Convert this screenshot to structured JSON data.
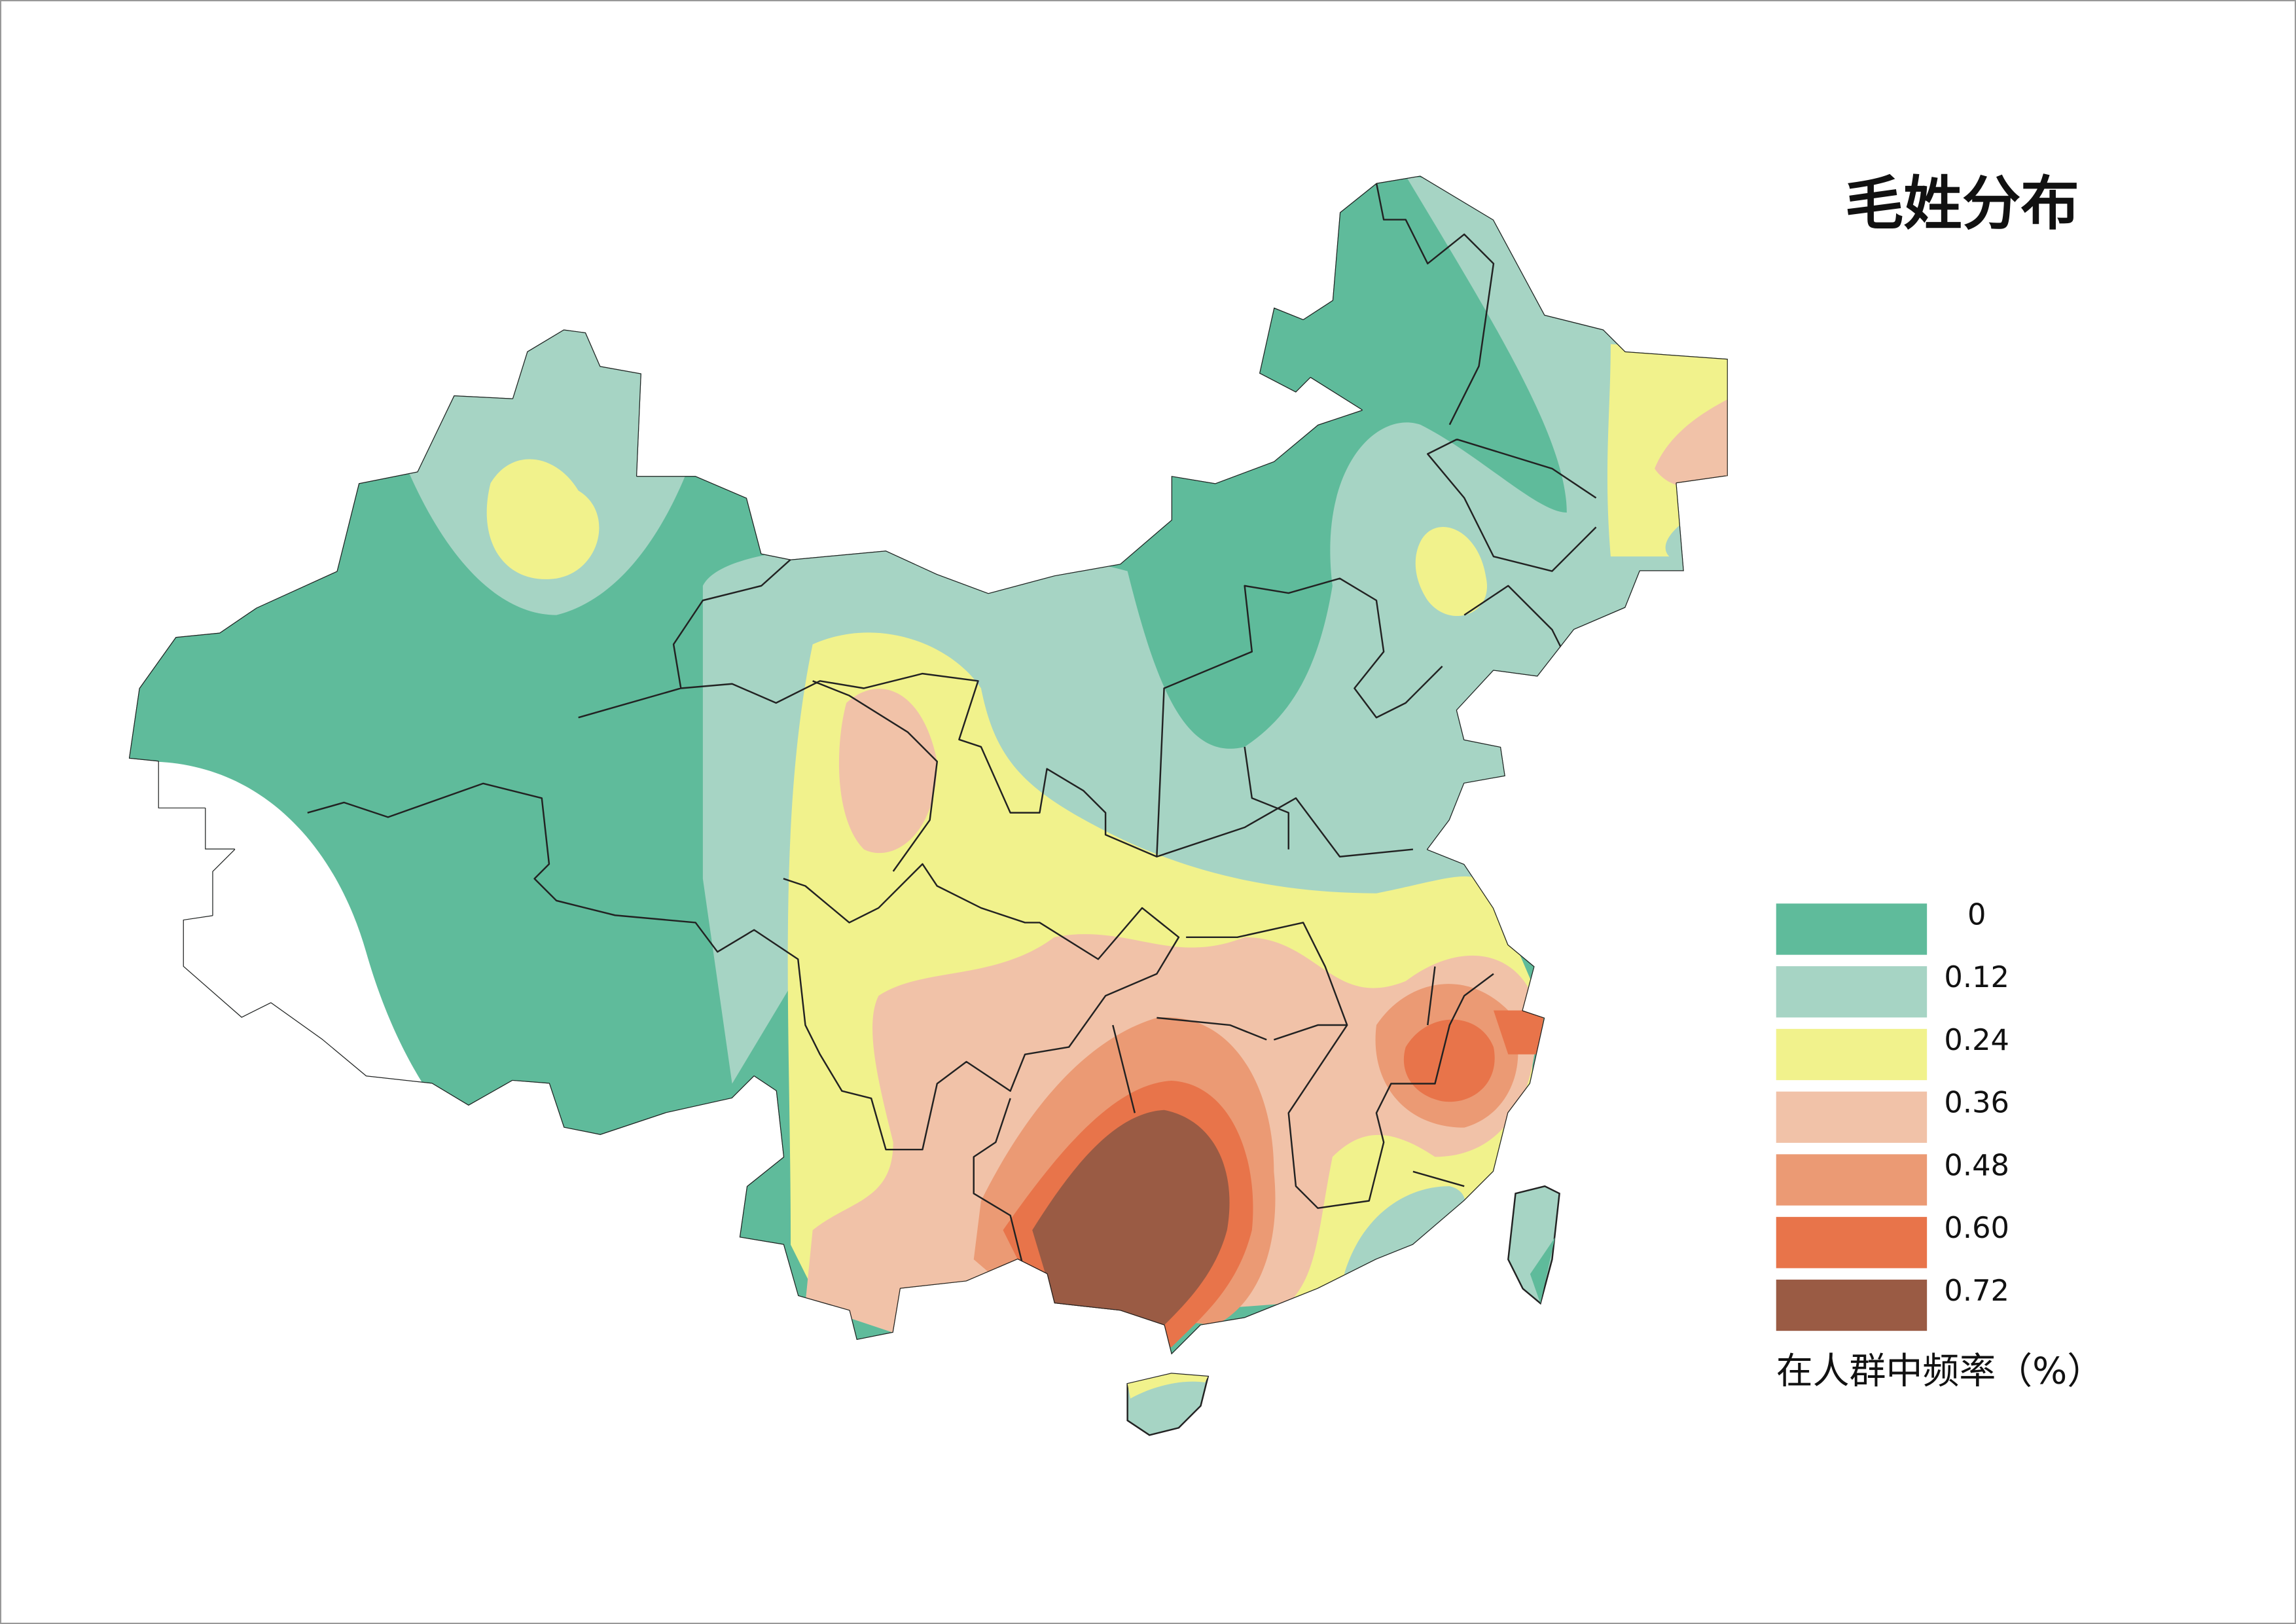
{
  "title": "毛姓分布",
  "legend": {
    "items": [
      {
        "label": "0",
        "color": "#5fbb9b"
      },
      {
        "label": "0.12",
        "color": "#a6d4c4"
      },
      {
        "label": "0.24",
        "color": "#f1f28c"
      },
      {
        "label": "0.36",
        "color": "#f1c2a8"
      },
      {
        "label": "0.48",
        "color": "#eb9a74"
      },
      {
        "label": "0.60",
        "color": "#e8744a"
      },
      {
        "label": "0.72",
        "color": "#9a5b44"
      }
    ],
    "caption": "在人群中频率（%）"
  }
}
